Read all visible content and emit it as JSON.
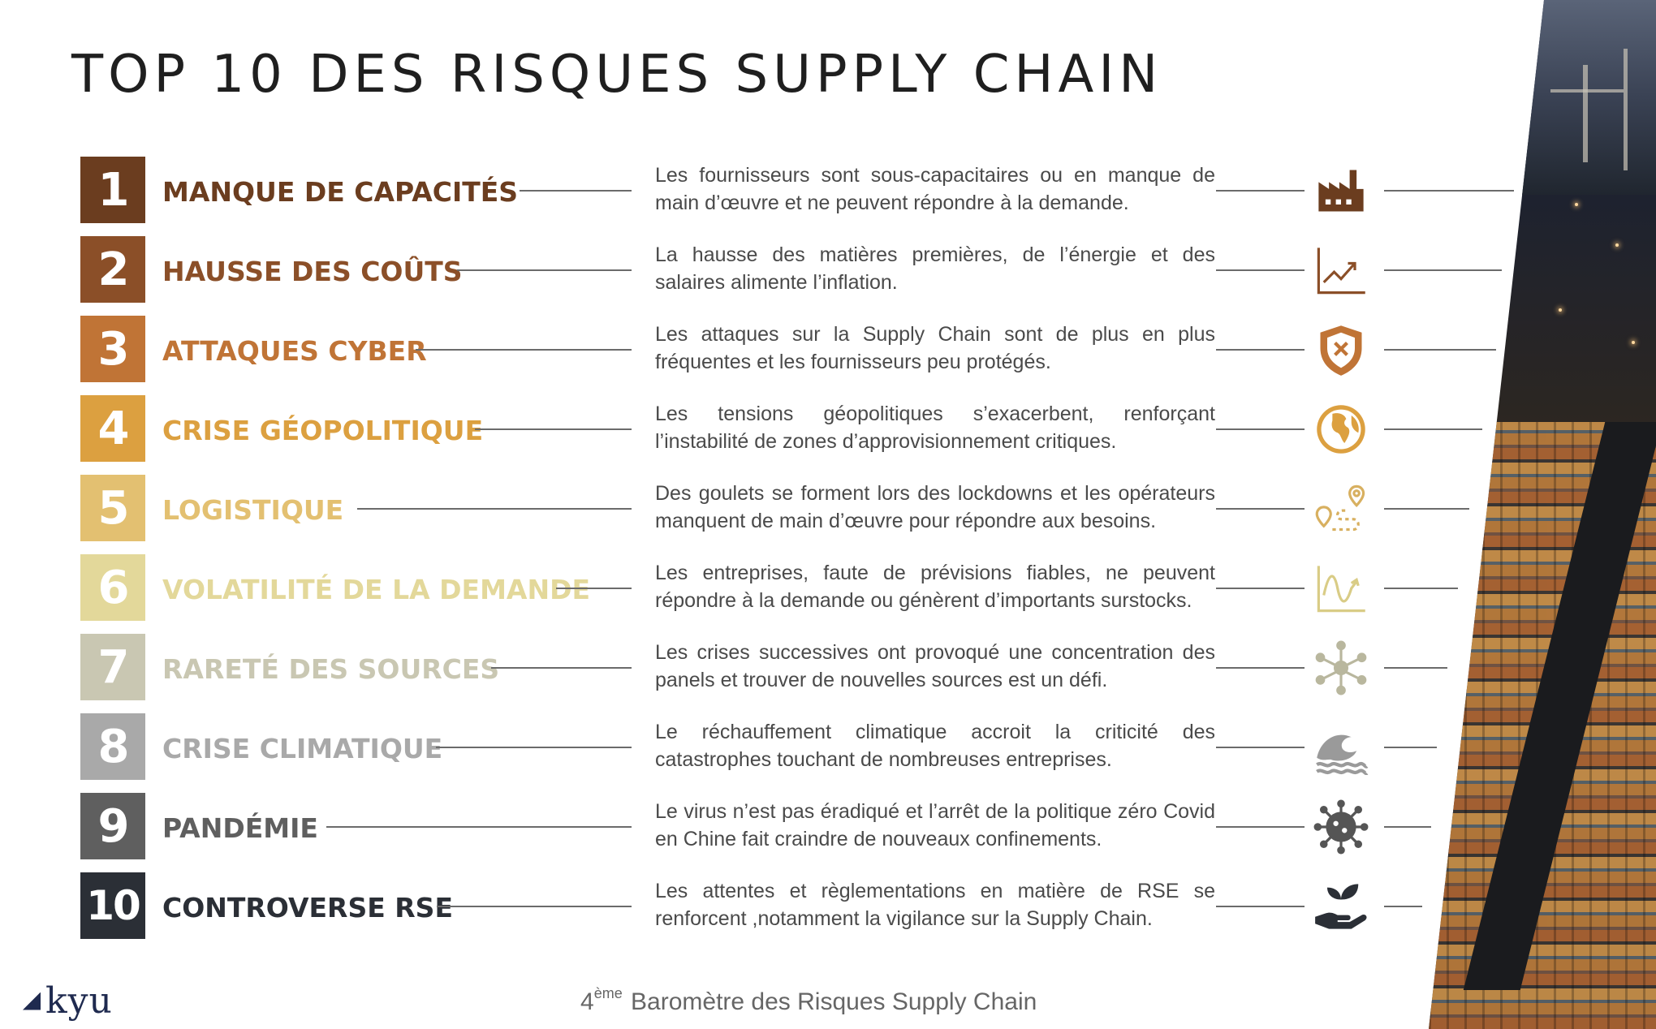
{
  "page": {
    "title": "TOP 10 DES RISQUES SUPPLY CHAIN"
  },
  "risks": [
    {
      "number": "1",
      "title": "MANQUE DE CAPACITÉS",
      "description": "Les fournisseurs sont sous-capacitaires ou en manque de main d’œuvre et ne peuvent répondre à la demande.",
      "color": "#6b3d1f",
      "icon": "factory-icon",
      "icon_color": "#6b3d1f"
    },
    {
      "number": "2",
      "title": "HAUSSE DES COÛTS",
      "description": "La hausse des matières premières, de l’énergie et des salaires alimente l’inflation.",
      "color": "#8b4f28",
      "icon": "trend-up-icon",
      "icon_color": "#8b4f28"
    },
    {
      "number": "3",
      "title": "ATTAQUES CYBER",
      "description": "Les attaques sur la Supply Chain sont de plus en plus fréquentes et les fournisseurs peu protégés.",
      "color": "#c07436",
      "icon": "shield-x-icon",
      "icon_color": "#c07436"
    },
    {
      "number": "4",
      "title": "CRISE GÉOPOLITIQUE",
      "description": "Les tensions géopolitiques s’exacerbent, renforçant l’instabilité de zones d’approvisionnement critiques.",
      "color": "#dca040",
      "icon": "globe-icon",
      "icon_color": "#dca040"
    },
    {
      "number": "5",
      "title": "LOGISTIQUE",
      "description": "Des goulets se forment lors des lockdowns et les opérateurs manquent de main d’œuvre pour répondre aux besoins.",
      "color": "#e3c071",
      "icon": "route-pins-icon",
      "icon_color": "#d8b060"
    },
    {
      "number": "6",
      "title": "VOLATILITÉ DE LA DEMANDE",
      "description": "Les entreprises, faute de prévisions fiables, ne peuvent répondre à la demande ou génèrent d’importants surstocks.",
      "color": "#e3d89a",
      "icon": "wave-chart-icon",
      "icon_color": "#d9cc86"
    },
    {
      "number": "7",
      "title": "RARETÉ DES SOURCES",
      "description": "Les crises successives ont provoqué une concentration des panels et trouver de nouvelles sources est un défi.",
      "color": "#c9c7b2",
      "icon": "network-hub-icon",
      "icon_color": "#b9b79e"
    },
    {
      "number": "8",
      "title": "CRISE CLIMATIQUE",
      "description": "Le réchauffement climatique accroit la criticité des catastrophes touchant de nombreuses entreprises.",
      "color": "#a9a9a9",
      "icon": "ocean-wave-icon",
      "icon_color": "#9a9a9a"
    },
    {
      "number": "9",
      "title": "PANDÉMIE",
      "description": "Le virus n’est pas éradiqué et l’arrêt de la politique zéro Covid en Chine fait craindre de nouveaux confinements.",
      "color": "#5f5f5f",
      "icon": "virus-icon",
      "icon_color": "#555555"
    },
    {
      "number": "10",
      "title": "CONTROVERSE RSE",
      "description": "Les attentes et règlementations en matière de RSE se renforcent ,notamment la vigilance sur la Supply Chain.",
      "color": "#2b2f36",
      "icon": "hand-plant-icon",
      "icon_color": "#2b2f36"
    }
  ],
  "footer": {
    "ordinal": "4",
    "ordinal_suffix": "ème",
    "text": "Baromètre des Risques Supply Chain"
  },
  "logo": {
    "text": "kyu"
  }
}
